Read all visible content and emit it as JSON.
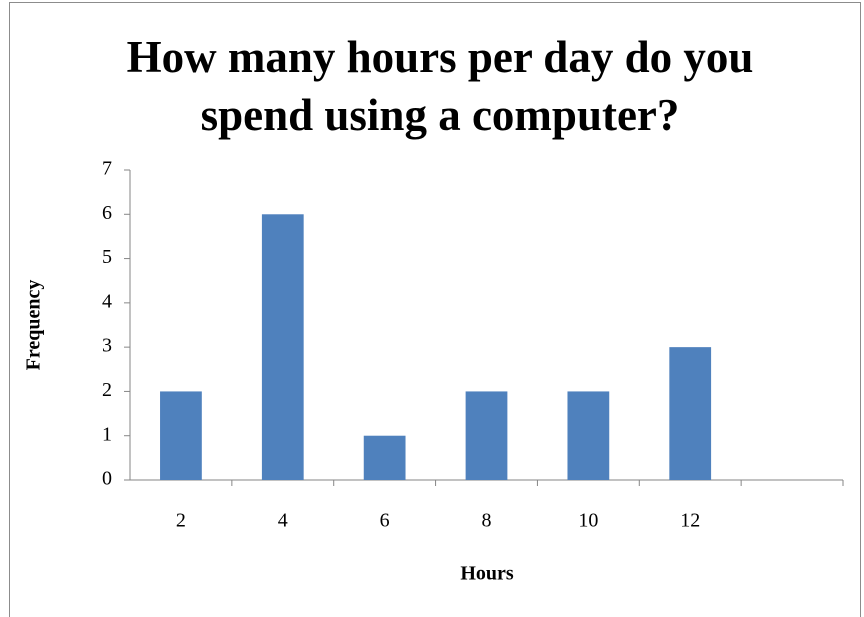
{
  "chart_data": {
    "type": "bar",
    "title": "How many hours per day do you spend using a computer?",
    "x_label": "Hours",
    "y_label": "Frequency",
    "categories": [
      "2",
      "4",
      "6",
      "8",
      "10",
      "12",
      null
    ],
    "values": [
      2,
      6,
      1,
      2,
      2,
      3,
      null
    ],
    "color": "#4f81bd",
    "ylim": [
      0,
      7
    ],
    "yticks": [
      0,
      1,
      2,
      3,
      4,
      5,
      6,
      7
    ],
    "grid": false
  }
}
